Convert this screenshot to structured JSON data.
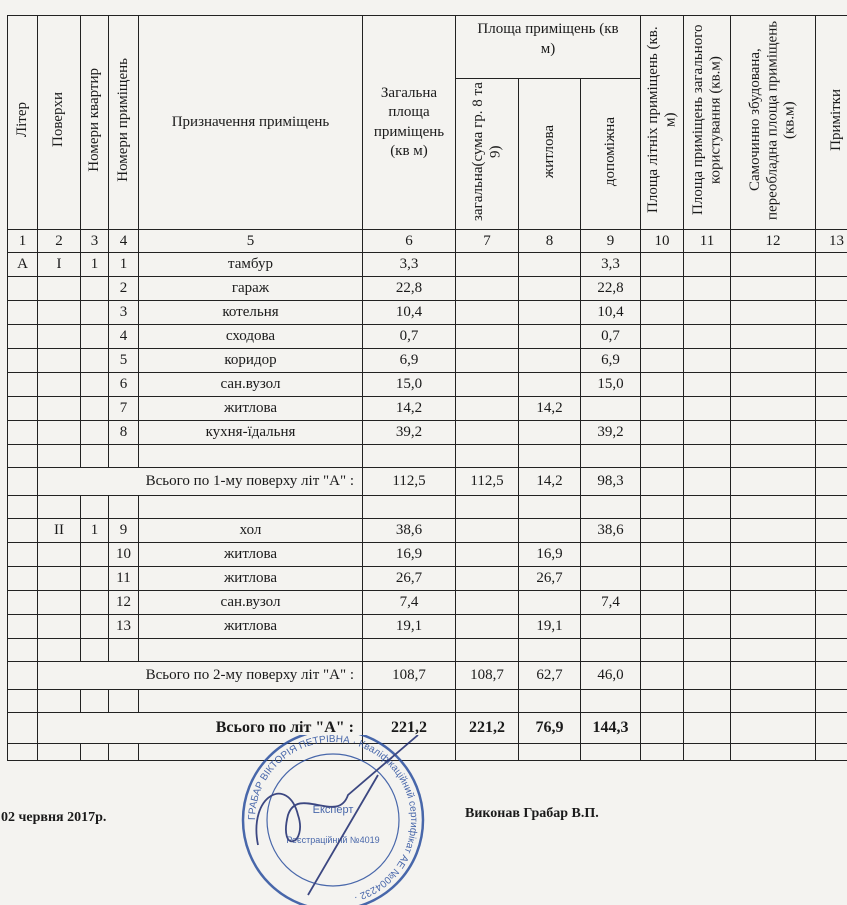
{
  "header": {
    "liter": "Літер",
    "floors": "Поверхи",
    "apartment_numbers": "Номери квартир",
    "room_numbers": "Номери приміщень",
    "purpose": "Призначення приміщень",
    "total_area": "Загальна площа приміщень (кв м)",
    "area_group": "Площа приміщень (кв м)",
    "area_total": "загальна(сума гр. 8 та 9)",
    "area_living": "житлова",
    "area_auxiliary": "допоміжна",
    "summer_area": "Площа літніх приміщень (кв. м)",
    "common_area": "Площа приміщень загального користування (кв.м)",
    "self_built": "Самочинно збудована, переобладна площа приміщень (кв.м)",
    "notes": "Примітки"
  },
  "column_numbers": [
    "1",
    "2",
    "3",
    "4",
    "5",
    "6",
    "7",
    "8",
    "9",
    "10",
    "11",
    "12",
    "13"
  ],
  "rows": [
    {
      "type": "r",
      "cells": [
        "А",
        "I",
        "1",
        "1",
        "тамбур",
        "3,3",
        "",
        "",
        "3,3"
      ]
    },
    {
      "type": "r",
      "cells": [
        "",
        "",
        "",
        "2",
        "гараж",
        "22,8",
        "",
        "",
        "22,8"
      ]
    },
    {
      "type": "r",
      "cells": [
        "",
        "",
        "",
        "3",
        "котельня",
        "10,4",
        "",
        "",
        "10,4"
      ]
    },
    {
      "type": "r",
      "cells": [
        "",
        "",
        "",
        "4",
        "сходова",
        "0,7",
        "",
        "",
        "0,7"
      ]
    },
    {
      "type": "r",
      "cells": [
        "",
        "",
        "",
        "5",
        "коридор",
        "6,9",
        "",
        "",
        "6,9"
      ]
    },
    {
      "type": "r",
      "cells": [
        "",
        "",
        "",
        "6",
        "сан.вузол",
        "15,0",
        "",
        "",
        "15,0"
      ]
    },
    {
      "type": "r",
      "cells": [
        "",
        "",
        "",
        "7",
        "житлова",
        "14,2",
        "",
        "14,2",
        ""
      ]
    },
    {
      "type": "r",
      "cells": [
        "",
        "",
        "",
        "8",
        "кухня-їдальня",
        "39,2",
        "",
        "",
        "39,2"
      ]
    },
    {
      "type": "gap",
      "cells": []
    },
    {
      "type": "sum",
      "label": "Всього по 1-му поверху літ \"А\" :",
      "cells": [
        "112,5",
        "112,5",
        "14,2",
        "98,3"
      ]
    },
    {
      "type": "gap",
      "cells": []
    },
    {
      "type": "r",
      "cells": [
        "",
        "II",
        "1",
        "9",
        "хол",
        "38,6",
        "",
        "",
        "38,6"
      ]
    },
    {
      "type": "r",
      "cells": [
        "",
        "",
        "",
        "10",
        "житлова",
        "16,9",
        "",
        "16,9",
        ""
      ]
    },
    {
      "type": "r",
      "cells": [
        "",
        "",
        "",
        "11",
        "житлова",
        "26,7",
        "",
        "26,7",
        ""
      ]
    },
    {
      "type": "r",
      "cells": [
        "",
        "",
        "",
        "12",
        "сан.вузол",
        "7,4",
        "",
        "",
        "7,4"
      ]
    },
    {
      "type": "r",
      "cells": [
        "",
        "",
        "",
        "13",
        "житлова",
        "19,1",
        "",
        "19,1",
        ""
      ]
    },
    {
      "type": "gap",
      "cells": []
    },
    {
      "type": "sum",
      "label": "Всього по 2-му поверху літ \"А\" :",
      "cells": [
        "108,7",
        "108,7",
        "62,7",
        "46,0"
      ]
    },
    {
      "type": "gap",
      "cells": []
    },
    {
      "type": "grand",
      "label": "Всього по літ \"А\" :",
      "cells": [
        "221,2",
        "221,2",
        "76,9",
        "144,3"
      ]
    },
    {
      "type": "end",
      "cells": []
    }
  ],
  "footer": {
    "date": "02 червня 2017р.",
    "performed_by": "Виконав Грабар В.П."
  },
  "stamp": {
    "text": "ГРАБАР ВІКТОРІЯ ПЕТРІВНА · Кваліфікаційний сертифікат АЕ №004232 · Україна · Експерт · Реєстраційний №4019",
    "color": "#2b4f9e"
  }
}
